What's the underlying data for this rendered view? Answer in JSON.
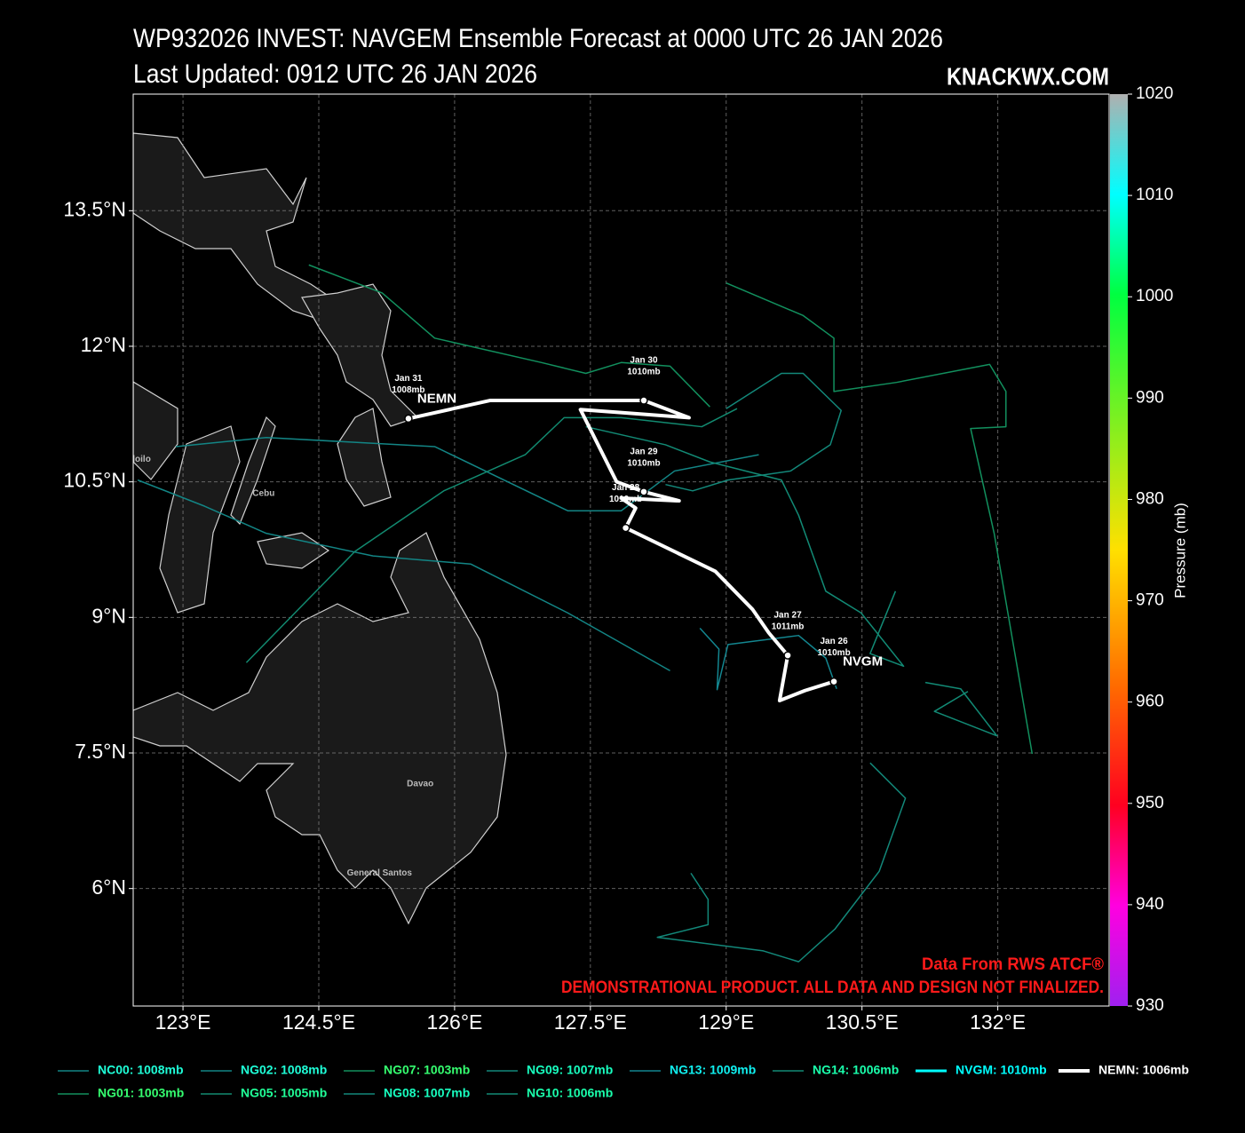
{
  "chart_data": {
    "type": "track-map",
    "title": "WP932026 INVEST: NAVGEM Ensemble Forecast at 0000 UTC 26 JAN 2026",
    "subtitle": "Last Updated: 0912 UTC 26 JAN 2026",
    "watermark": "KNACKWX.COM",
    "source_note": "Data From RWS ATCF®",
    "disclaimer": "DEMONSTRATIONAL PRODUCT. ALL DATA AND DESIGN NOT FINALIZED.",
    "xlim": [
      122.45,
      133.23
    ],
    "ylim": [
      4.7,
      14.79
    ],
    "xticks": [
      {
        "value": 123,
        "label": "123°E"
      },
      {
        "value": 124.5,
        "label": "124.5°E"
      },
      {
        "value": 126,
        "label": "126°E"
      },
      {
        "value": 127.5,
        "label": "127.5°E"
      },
      {
        "value": 129,
        "label": "129°E"
      },
      {
        "value": 130.5,
        "label": "130.5°E"
      },
      {
        "value": 132,
        "label": "132°E"
      }
    ],
    "yticks": [
      {
        "value": 6,
        "label": "6°N"
      },
      {
        "value": 7.5,
        "label": "7.5°N"
      },
      {
        "value": 9,
        "label": "9°N"
      },
      {
        "value": 10.5,
        "label": "10.5°N"
      },
      {
        "value": 12,
        "label": "12°N"
      },
      {
        "value": 13.5,
        "label": "13.5°N"
      }
    ],
    "grid": true,
    "colorbar": {
      "label": "Pressure (mb)",
      "lim": [
        930,
        1020
      ],
      "ticks": [
        930,
        940,
        950,
        960,
        970,
        980,
        990,
        1000,
        1010,
        1020
      ]
    },
    "series": [
      {
        "name": "NC00: 1008mb",
        "color": "#138585",
        "label_color": "#1fffd8",
        "width": 1.5,
        "x": [
          122.5,
          123.24,
          123.92,
          125.1,
          126.18,
          127.25,
          128.38
        ],
        "y": [
          10.52,
          10.23,
          9.93,
          9.68,
          9.59,
          9.05,
          8.41
        ]
      },
      {
        "name": "NG01: 1003mb",
        "color": "#12905e",
        "label_color": "#35ff70",
        "width": 1.5,
        "x": [
          129.0,
          129.85,
          130.19,
          130.19,
          130.88,
          131.91,
          132.09,
          132.09,
          131.7,
          131.96,
          132.38
        ],
        "y": [
          12.7,
          12.34,
          12.09,
          11.5,
          11.6,
          11.8,
          11.5,
          11.11,
          11.09,
          9.93,
          7.49
        ]
      },
      {
        "name": "NG02: 1008mb",
        "color": "#138585",
        "label_color": "#1fffd8",
        "width": 1.5,
        "x": [
          122.92,
          123.92,
          125.78,
          127.25,
          127.84,
          128.43,
          129.36
        ],
        "y": [
          10.89,
          10.99,
          10.89,
          10.18,
          10.18,
          10.62,
          10.8
        ]
      },
      {
        "name": "NG05: 1005mb",
        "color": "#128a70",
        "label_color": "#20ff98",
        "width": 1.5,
        "x": [
          123.7,
          124.9,
          125.88,
          126.78,
          127.21,
          127.84,
          128.73,
          129.12
        ],
        "y": [
          8.5,
          9.73,
          10.4,
          10.8,
          11.21,
          11.21,
          11.11,
          11.31
        ]
      },
      {
        "name": "NG07: 1003mb",
        "color": "#12905e",
        "label_color": "#35ff70",
        "width": 1.5,
        "x": [
          124.39,
          125.2,
          125.78,
          126.96,
          127.45,
          127.84,
          128.38,
          128.82
        ],
        "y": [
          12.9,
          12.59,
          12.09,
          11.82,
          11.7,
          11.82,
          11.78,
          11.33
        ]
      },
      {
        "name": "NG08: 1007mb",
        "color": "#13887a",
        "label_color": "#18ffc0",
        "width": 1.5,
        "x": [
          130.59,
          130.98,
          130.69,
          130.2,
          129.8,
          129.41,
          128.24,
          128.8,
          128.8,
          128.61
        ],
        "y": [
          7.39,
          7.0,
          6.19,
          5.55,
          5.19,
          5.31,
          5.46,
          5.6,
          5.88,
          6.17
        ]
      },
      {
        "name": "NG09: 1007mb",
        "color": "#13887a",
        "label_color": "#18ffc0",
        "width": 1.5,
        "x": [
          129.0,
          129.61,
          129.85,
          130.27,
          130.15,
          129.71,
          129.02,
          128.63,
          128.33
        ],
        "y": [
          11.31,
          11.7,
          11.7,
          11.29,
          10.91,
          10.62,
          10.52,
          10.4,
          10.47
        ]
      },
      {
        "name": "NG10: 1006mb",
        "color": "#128a75",
        "label_color": "#1affac",
        "width": 1.5,
        "x": [
          131.2,
          131.59,
          131.99,
          131.3,
          131.67
        ],
        "y": [
          8.28,
          8.21,
          7.69,
          7.96,
          8.18
        ]
      },
      {
        "name": "NG13: 1009mb",
        "color": "#138690",
        "label_color": "#10f0f0",
        "width": 1.5,
        "x": [
          128.71,
          128.92,
          128.9,
          129.02,
          129.8,
          130.1,
          130.22
        ],
        "y": [
          8.88,
          8.65,
          8.2,
          8.7,
          8.8,
          8.55,
          8.21
        ]
      },
      {
        "name": "NG14: 1006mb",
        "color": "#128a75",
        "label_color": "#1affac",
        "width": 1.5,
        "x": [
          127.45,
          128.33,
          128.82,
          129.61,
          129.8,
          130.1,
          130.49,
          130.96,
          130.59,
          130.87
        ],
        "y": [
          11.11,
          10.91,
          10.72,
          10.52,
          10.13,
          9.29,
          9.05,
          8.46,
          8.6,
          9.29
        ]
      },
      {
        "name": "NVGM: 1010mb",
        "color": "#00ffff",
        "label_color": "#00ffff",
        "width": 3,
        "x": [
          130.19,
          129.87,
          129.59,
          129.68
        ],
        "y": [
          8.29,
          8.19,
          8.08,
          8.58
        ]
      },
      {
        "name": "NEMN: 1006mb",
        "color": "#ffffff",
        "label_color": "#ffffff",
        "width": 4,
        "x": [
          130.19,
          129.87,
          129.59,
          129.68,
          129.47,
          129.29,
          128.88,
          127.89,
          128.0,
          127.84,
          128.48,
          128.09,
          127.79,
          127.39,
          128.59,
          128.09,
          126.39,
          125.49
        ],
        "y": [
          8.29,
          8.19,
          8.08,
          8.58,
          8.83,
          9.09,
          9.51,
          9.99,
          10.21,
          10.32,
          10.29,
          10.39,
          10.5,
          11.3,
          11.21,
          11.4,
          11.4,
          11.2
        ]
      }
    ],
    "annotations": [
      {
        "lines": [
          "Jan 26",
          "1010mb"
        ],
        "x": 130.19,
        "y": 8.29
      },
      {
        "lines": [
          "Jan 27",
          "1011mb"
        ],
        "x": 129.68,
        "y": 8.58
      },
      {
        "lines": [
          "Jan 28",
          "1010mb"
        ],
        "x": 127.89,
        "y": 9.99
      },
      {
        "lines": [
          "Jan 29",
          "1010mb"
        ],
        "x": 128.09,
        "y": 10.39
      },
      {
        "lines": [
          "Jan 30",
          "1010mb"
        ],
        "x": 128.09,
        "y": 11.4
      },
      {
        "lines": [
          "Jan 31",
          "1008mb"
        ],
        "x": 125.49,
        "y": 11.2
      }
    ],
    "track_labels": [
      {
        "text": "NVGM",
        "x": 130.19,
        "y": 8.29
      },
      {
        "text": "NEMN",
        "x": 125.49,
        "y": 11.2
      }
    ],
    "places": [
      {
        "name": "Iloilo",
        "x": 122.53,
        "y": 10.75
      },
      {
        "name": "Cebu",
        "x": 123.89,
        "y": 10.37
      },
      {
        "name": "Davao",
        "x": 125.62,
        "y": 7.16
      },
      {
        "name": "General Santos",
        "x": 125.17,
        "y": 6.17
      }
    ]
  }
}
